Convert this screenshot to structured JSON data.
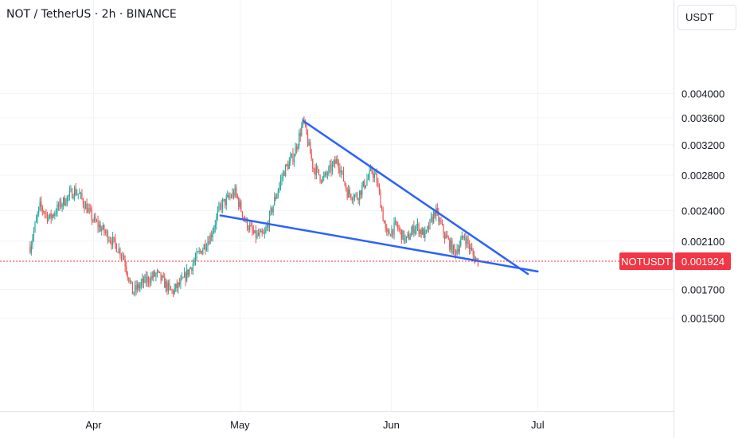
{
  "header": {
    "title": "NOT / TetherUS · 2h · BINANCE"
  },
  "currency": {
    "label": "USDT"
  },
  "chart_data": {
    "type": "candlestick",
    "symbol": "NOTUSDT",
    "current_price": 0.001924,
    "current_price_label": "0.001924",
    "y_scale": "log",
    "y_ticks": [
      "0.004000",
      "0.003600",
      "0.003200",
      "0.002800",
      "0.002400",
      "0.002100",
      "0.001700",
      "0.001500"
    ],
    "x_ticks": [
      "Apr",
      "May",
      "Jun",
      "Jul"
    ],
    "price_path": [
      [
        "2024-03-19",
        0.00205
      ],
      [
        "2024-03-21",
        0.00245
      ],
      [
        "2024-03-23",
        0.00232
      ],
      [
        "2024-03-25",
        0.00245
      ],
      [
        "2024-03-28",
        0.00262
      ],
      [
        "2024-03-29",
        0.00258
      ],
      [
        "2024-04-01",
        0.0023
      ],
      [
        "2024-04-04",
        0.00215
      ],
      [
        "2024-04-07",
        0.00198
      ],
      [
        "2024-04-09",
        0.00168
      ],
      [
        "2024-04-11",
        0.00175
      ],
      [
        "2024-04-14",
        0.00182
      ],
      [
        "2024-04-17",
        0.00168
      ],
      [
        "2024-04-19",
        0.00175
      ],
      [
        "2024-04-22",
        0.00195
      ],
      [
        "2024-04-25",
        0.00215
      ],
      [
        "2024-04-27",
        0.00245
      ],
      [
        "2024-04-30",
        0.0026
      ],
      [
        "2024-05-02",
        0.0023
      ],
      [
        "2024-05-04",
        0.00215
      ],
      [
        "2024-05-06",
        0.00215
      ],
      [
        "2024-05-08",
        0.0025
      ],
      [
        "2024-05-10",
        0.00285
      ],
      [
        "2024-05-12",
        0.00305
      ],
      [
        "2024-05-14",
        0.00355
      ],
      [
        "2024-05-16",
        0.0029
      ],
      [
        "2024-05-18",
        0.00275
      ],
      [
        "2024-05-21",
        0.003
      ],
      [
        "2024-05-23",
        0.0026
      ],
      [
        "2024-05-25",
        0.00255
      ],
      [
        "2024-05-28",
        0.00285
      ],
      [
        "2024-05-29",
        0.00275
      ],
      [
        "2024-05-31",
        0.00215
      ],
      [
        "2024-06-02",
        0.00225
      ],
      [
        "2024-06-04",
        0.0021
      ],
      [
        "2024-06-06",
        0.00225
      ],
      [
        "2024-06-08",
        0.00215
      ],
      [
        "2024-06-10",
        0.0024
      ],
      [
        "2024-06-12",
        0.00215
      ],
      [
        "2024-06-14",
        0.002
      ],
      [
        "2024-06-16",
        0.00215
      ],
      [
        "2024-06-18",
        0.00195
      ],
      [
        "2024-06-19",
        0.00192
      ]
    ],
    "trendlines": [
      {
        "name": "upper",
        "from": [
          "2024-05-14",
          0.00355
        ],
        "to": [
          "2024-06-29",
          0.00182
        ]
      },
      {
        "name": "lower",
        "from": [
          "2024-04-27",
          0.00235
        ],
        "to": [
          "2024-07-01",
          0.00184
        ]
      }
    ],
    "colors": {
      "up": "#26a69a",
      "down": "#ef5350",
      "trendline": "#2962ff",
      "price_line": "#f23645",
      "price_tag": "#f23645",
      "grid": "#f0f3fa"
    },
    "grid": true
  }
}
